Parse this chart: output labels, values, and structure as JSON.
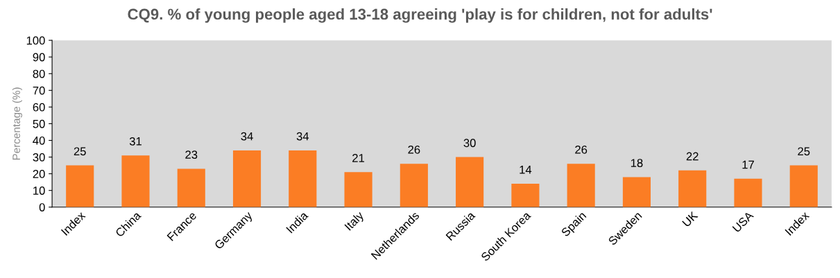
{
  "chart_data": {
    "type": "bar",
    "title": "CQ9. % of young people aged 13-18 agreeing 'play is for children, not for adults'",
    "ylabel": "Percentage (%)",
    "categories": [
      "Index",
      "China",
      "France",
      "Germany",
      "India",
      "Italy",
      "Netherlands",
      "Russia",
      "South Korea",
      "Spain",
      "Sweden",
      "UK",
      "USA",
      "Index"
    ],
    "values": [
      25,
      31,
      23,
      34,
      34,
      21,
      26,
      30,
      14,
      26,
      18,
      22,
      17,
      25
    ],
    "color": "#fb7d24",
    "ylim": [
      0,
      100
    ],
    "yticks": [
      0,
      10,
      20,
      30,
      40,
      50,
      60,
      70,
      80,
      90,
      100
    ],
    "grid": false,
    "data_labels": true
  }
}
